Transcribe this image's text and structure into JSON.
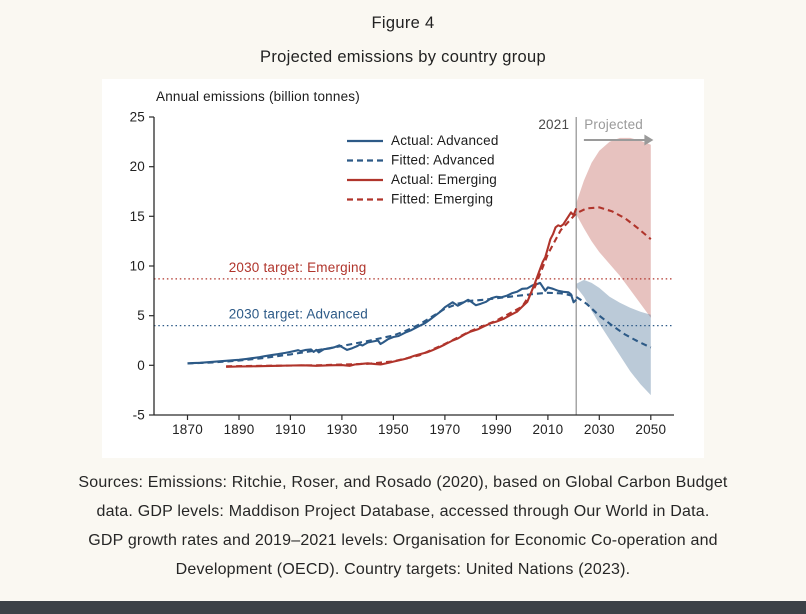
{
  "page": {
    "title": "Figure 4",
    "subtitle": "Projected emissions by country group",
    "source_lines": [
      "Sources: Emissions: Ritchie, Roser, and Rosado (2020), based on Global Carbon Budget",
      "data. GDP levels: Maddison Project Database, accessed through Our World in Data.",
      "GDP growth rates and 2019–2021 levels: Organisation for Economic Co-operation and",
      "Development (OECD). Country targets: United Nations (2023)."
    ],
    "colors": {
      "background": "#faf8f2",
      "chart_background": "#ffffff",
      "advanced_blue": "#2d5a87",
      "emerging_red": "#b0342b",
      "bottom_bar": "#3c4147"
    }
  },
  "chart_data": {
    "type": "line",
    "title": "Projected emissions by country group",
    "ylabel": "Annual emissions (billion tonnes)",
    "xlim": [
      1857,
      2059
    ],
    "ylim": [
      -5,
      25
    ],
    "xticks": [
      1870,
      1890,
      1910,
      1930,
      1950,
      1970,
      1990,
      2010,
      2030,
      2050
    ],
    "yticks": [
      -5,
      0,
      5,
      10,
      15,
      20,
      25
    ],
    "grid": false,
    "legend_position": "upper-center-left",
    "vline": {
      "x": 2021,
      "label": "2021",
      "color": "#8f8f8f"
    },
    "projected_annotation": {
      "label": "Projected",
      "arrow_from": 2024,
      "arrow_to": 2051,
      "color": "#9a9a9a"
    },
    "targets": [
      {
        "name": "target-emerging",
        "label": "2030 target: Emerging",
        "value": 8.7,
        "color": "#b0342b",
        "label_x": 1886
      },
      {
        "name": "target-advanced",
        "label": "2030 target: Advanced",
        "value": 4.0,
        "color": "#2d5a87",
        "label_x": 1886
      }
    ],
    "series": [
      {
        "name": "Actual: Advanced",
        "color": "#2d5a87",
        "dash": false,
        "x": [
          1870,
          1872,
          1875,
          1878,
          1880,
          1883,
          1885,
          1888,
          1890,
          1893,
          1895,
          1898,
          1900,
          1903,
          1905,
          1908,
          1910,
          1913,
          1914,
          1916,
          1918,
          1919,
          1920,
          1921,
          1923,
          1925,
          1927,
          1929,
          1930,
          1932,
          1934,
          1936,
          1937,
          1938,
          1940,
          1942,
          1944,
          1945,
          1946,
          1948,
          1950,
          1952,
          1955,
          1957,
          1960,
          1962,
          1965,
          1968,
          1970,
          1973,
          1975,
          1977,
          1979,
          1980,
          1982,
          1984,
          1986,
          1988,
          1990,
          1992,
          1994,
          1996,
          1998,
          2000,
          2002,
          2004,
          2006,
          2007,
          2009,
          2010,
          2012,
          2014,
          2016,
          2018,
          2019,
          2020,
          2021
        ],
        "y": [
          0.2,
          0.22,
          0.26,
          0.32,
          0.36,
          0.42,
          0.46,
          0.52,
          0.56,
          0.65,
          0.72,
          0.82,
          0.92,
          1.05,
          1.12,
          1.25,
          1.35,
          1.52,
          1.42,
          1.55,
          1.6,
          1.35,
          1.55,
          1.3,
          1.62,
          1.68,
          1.82,
          2.02,
          1.85,
          1.55,
          1.72,
          1.95,
          2.1,
          2.0,
          2.3,
          2.4,
          2.5,
          2.15,
          2.3,
          2.65,
          2.85,
          2.95,
          3.35,
          3.55,
          3.95,
          4.2,
          4.75,
          5.35,
          5.85,
          6.35,
          6.0,
          6.3,
          6.6,
          6.45,
          6.05,
          6.2,
          6.4,
          6.75,
          6.9,
          6.85,
          7.0,
          7.25,
          7.4,
          7.7,
          7.75,
          8.05,
          8.2,
          8.3,
          7.5,
          7.85,
          7.7,
          7.5,
          7.4,
          7.35,
          7.15,
          6.35,
          6.6
        ]
      },
      {
        "name": "Fitted: Advanced",
        "color": "#2d5a87",
        "dash": true,
        "x": [
          1870,
          1880,
          1890,
          1900,
          1910,
          1920,
          1930,
          1940,
          1950,
          1955,
          1960,
          1965,
          1970,
          1975,
          1980,
          1985,
          1990,
          1995,
          2000,
          2005,
          2010,
          2015,
          2018,
          2021,
          2025,
          2030,
          2035,
          2040,
          2045,
          2050
        ],
        "y": [
          0.18,
          0.3,
          0.48,
          0.75,
          1.1,
          1.5,
          1.95,
          2.45,
          3.0,
          3.5,
          4.1,
          4.9,
          5.7,
          6.2,
          6.5,
          6.6,
          6.75,
          6.9,
          7.05,
          7.2,
          7.3,
          7.25,
          7.1,
          6.9,
          6.2,
          5.0,
          4.0,
          3.1,
          2.4,
          1.8
        ]
      },
      {
        "name": "Actual: Emerging",
        "color": "#b0342b",
        "dash": false,
        "x": [
          1885,
          1890,
          1895,
          1900,
          1905,
          1910,
          1915,
          1920,
          1925,
          1930,
          1933,
          1935,
          1938,
          1940,
          1943,
          1945,
          1948,
          1950,
          1953,
          1955,
          1958,
          1960,
          1963,
          1965,
          1968,
          1970,
          1973,
          1975,
          1978,
          1980,
          1983,
          1985,
          1988,
          1990,
          1993,
          1995,
          1998,
          2000,
          2002,
          2003,
          2005,
          2007,
          2008,
          2009,
          2010,
          2011,
          2012,
          2013,
          2014,
          2015,
          2016,
          2017,
          2018,
          2019,
          2020,
          2021
        ],
        "y": [
          -0.15,
          -0.12,
          -0.1,
          -0.08,
          -0.05,
          -0.02,
          0.0,
          -0.05,
          0.0,
          0.02,
          -0.05,
          0.08,
          0.15,
          0.2,
          0.12,
          0.08,
          0.25,
          0.38,
          0.55,
          0.68,
          0.95,
          1.1,
          1.3,
          1.5,
          1.85,
          2.1,
          2.5,
          2.7,
          3.15,
          3.4,
          3.65,
          3.9,
          4.25,
          4.4,
          4.7,
          5.0,
          5.4,
          5.9,
          6.4,
          7.0,
          8.3,
          9.7,
          10.4,
          10.9,
          11.8,
          12.7,
          13.2,
          13.9,
          14.1,
          14.0,
          14.2,
          14.6,
          15.0,
          15.4,
          15.1,
          15.8
        ]
      },
      {
        "name": "Fitted: Emerging",
        "color": "#b0342b",
        "dash": true,
        "x": [
          1885,
          1900,
          1920,
          1940,
          1950,
          1960,
          1970,
          1980,
          1990,
          2000,
          2005,
          2010,
          2015,
          2021,
          2025,
          2030,
          2035,
          2040,
          2045,
          2050
        ],
        "y": [
          -0.1,
          -0.05,
          0.0,
          0.15,
          0.4,
          1.0,
          2.15,
          3.45,
          4.5,
          5.9,
          7.9,
          11.2,
          13.6,
          15.3,
          15.8,
          15.9,
          15.5,
          14.8,
          13.8,
          12.7
        ]
      }
    ],
    "bands": [
      {
        "name": "projection-band-emerging",
        "color": "#b0342b",
        "opacity": 0.3,
        "x": [
          2021,
          2024,
          2027,
          2030,
          2034,
          2038,
          2042,
          2046,
          2050
        ],
        "upper": [
          16.3,
          18.6,
          20.4,
          21.6,
          22.5,
          22.9,
          22.9,
          22.6,
          22.2
        ],
        "lower": [
          15.2,
          13.8,
          12.5,
          11.4,
          10.2,
          9.0,
          7.6,
          6.2,
          4.8
        ]
      },
      {
        "name": "projection-band-advanced",
        "color": "#2d5a87",
        "opacity": 0.32,
        "x": [
          2021,
          2024,
          2027,
          2030,
          2034,
          2038,
          2042,
          2046,
          2050
        ],
        "upper": [
          8.2,
          8.6,
          8.3,
          7.8,
          6.9,
          6.3,
          5.8,
          5.4,
          5.1
        ],
        "lower": [
          7.9,
          6.9,
          5.5,
          4.2,
          2.6,
          1.0,
          -0.6,
          -1.9,
          -3.0
        ]
      }
    ]
  }
}
